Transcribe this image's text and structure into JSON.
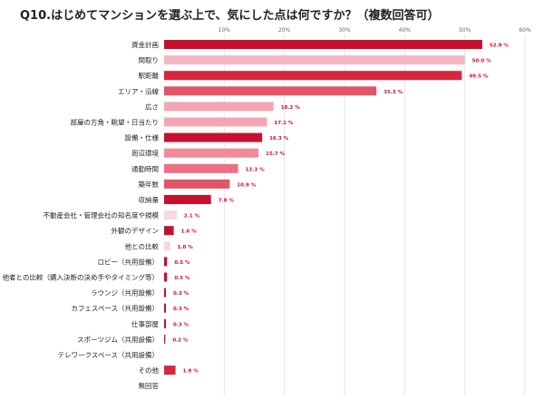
{
  "chart_data": {
    "type": "bar",
    "orientation": "horizontal",
    "title": "Q10.はじめてマンションを選ぶ上で、気にした点は何ですか？（複数回答可）",
    "xlabel": "",
    "ylabel": "",
    "xlim": [
      0,
      60
    ],
    "x_ticks": [
      "10%",
      "20%",
      "30%",
      "40%",
      "50%",
      "60%"
    ],
    "tick_values": [
      10,
      20,
      30,
      40,
      50,
      60
    ],
    "grid": true,
    "legend": "none",
    "categories": [
      "資金計画",
      "間取り",
      "駅距離",
      "エリア・沿線",
      "広さ",
      "部屋の方角・眺望・日当たり",
      "設備・仕様",
      "周辺環境",
      "通勤時間",
      "築年数",
      "収納量",
      "不動産会社・管理会社の知名度や規模",
      "外観のデザイン",
      "他との比較",
      "ロビー（共用設備）",
      "他者との比較（購入決断の決め手やタイミング等）",
      "ラウンジ（共用設備）",
      "カフェスペース（共用設備）",
      "仕事部屋",
      "スポーツジム（共用設備）",
      "テレワークスペース（共用設備）",
      "その他",
      "無回答"
    ],
    "values": [
      52.9,
      50.0,
      49.5,
      35.3,
      18.2,
      17.1,
      16.3,
      15.7,
      12.3,
      10.9,
      7.8,
      2.1,
      1.6,
      1.0,
      0.5,
      0.5,
      0.3,
      0.3,
      0.3,
      0.2,
      null,
      1.9,
      null
    ],
    "value_labels": [
      "52.9 %",
      "50.0 %",
      "49.5 %",
      "35.3 %",
      "18.2 %",
      "17.1 %",
      "16.3 %",
      "15.7 %",
      "12.3 %",
      "10.9 %",
      "7.8 %",
      "2.1 %",
      "1.6 %",
      "1.0 %",
      "0.5 %",
      "0.5 %",
      "0.3 %",
      "0.3 %",
      "0.3 %",
      "0.2 %",
      "",
      "1.9 %",
      ""
    ],
    "bar_colors": [
      "#c8102e",
      "#f4b6c2",
      "#d7263d",
      "#e0556a",
      "#f1a7b3",
      "#f1a7b3",
      "#c8102e",
      "#f28a9a",
      "#ec6f82",
      "#e0556a",
      "#c8102e",
      "#f7d9de",
      "#c8102e",
      "#f7d9de",
      "#c8102e",
      "#c8102e",
      "#c8102e",
      "#c8102e",
      "#c8102e",
      "#c8102e",
      "#c8102e",
      "#d7263d",
      "#c8102e"
    ],
    "colors": {
      "gridline": "#e6e6e6",
      "label_text": "#222222",
      "value_text": "#c8102e",
      "tick_text": "#666666"
    }
  }
}
